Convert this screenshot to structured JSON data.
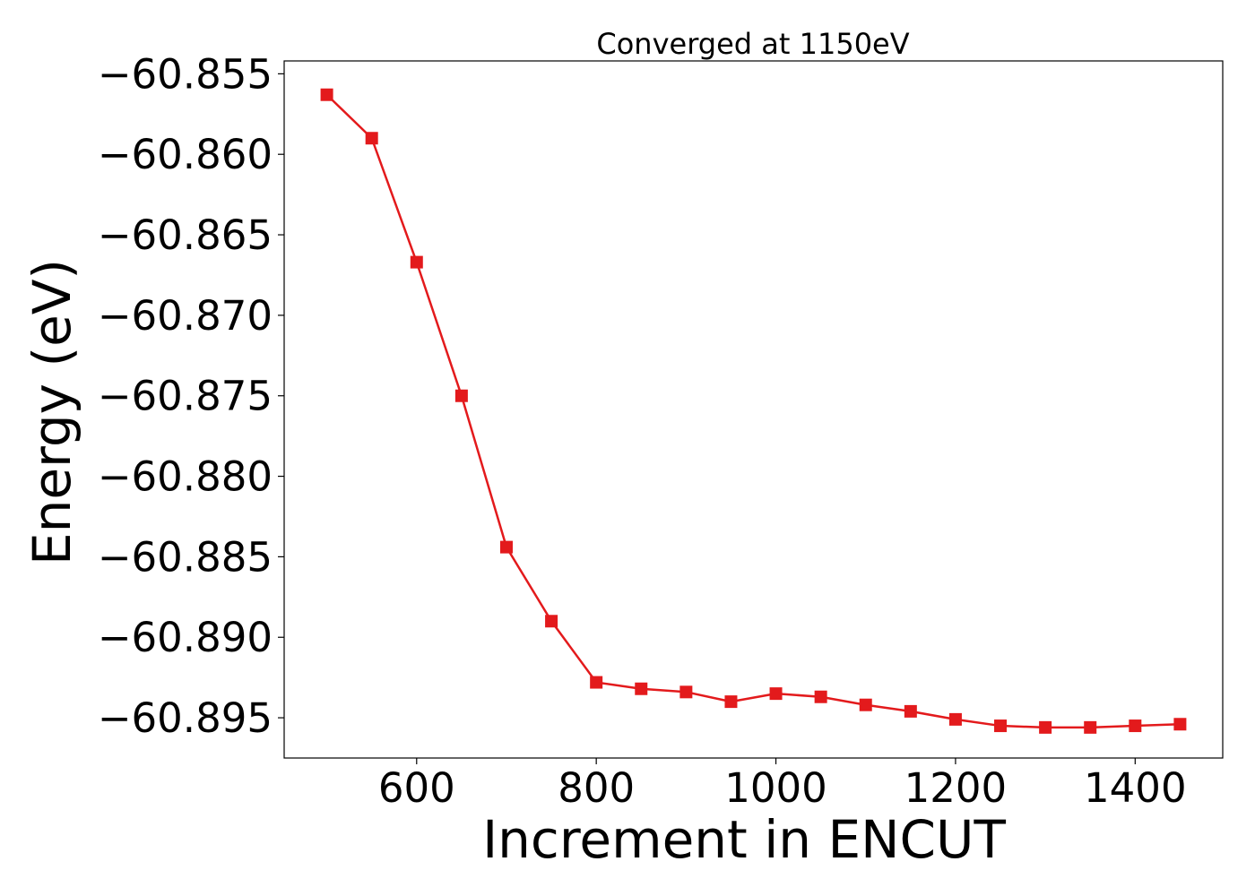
{
  "chart_data": {
    "type": "line",
    "title": "Converged at 1150eV",
    "xlabel": "Increment in ENCUT",
    "ylabel": "Energy (eV)",
    "xlim": [
      452.5,
      1497.5
    ],
    "ylim": [
      -60.8975,
      -60.8542
    ],
    "xticks": [
      600,
      800,
      1000,
      1200,
      1400
    ],
    "yticks": [
      -60.855,
      -60.86,
      -60.865,
      -60.87,
      -60.875,
      -60.88,
      -60.885,
      -60.89,
      -60.895
    ],
    "ytick_labels": [
      "−60.855",
      "−60.860",
      "−60.865",
      "−60.870",
      "−60.875",
      "−60.880",
      "−60.885",
      "−60.890",
      "−60.895"
    ],
    "grid": false,
    "series": [
      {
        "color": "#e31a1c",
        "marker": "square",
        "x": [
          500,
          550,
          600,
          650,
          700,
          750,
          800,
          850,
          900,
          950,
          1000,
          1050,
          1100,
          1150,
          1200,
          1250,
          1300,
          1350,
          1400,
          1450
        ],
        "y": [
          -60.8563,
          -60.859,
          -60.8667,
          -60.875,
          -60.8844,
          -60.889,
          -60.8928,
          -60.8932,
          -60.8934,
          -60.894,
          -60.8935,
          -60.8937,
          -60.8942,
          -60.8946,
          -60.8951,
          -60.8955,
          -60.8956,
          -60.8956,
          -60.8955,
          -60.8954
        ]
      }
    ]
  }
}
